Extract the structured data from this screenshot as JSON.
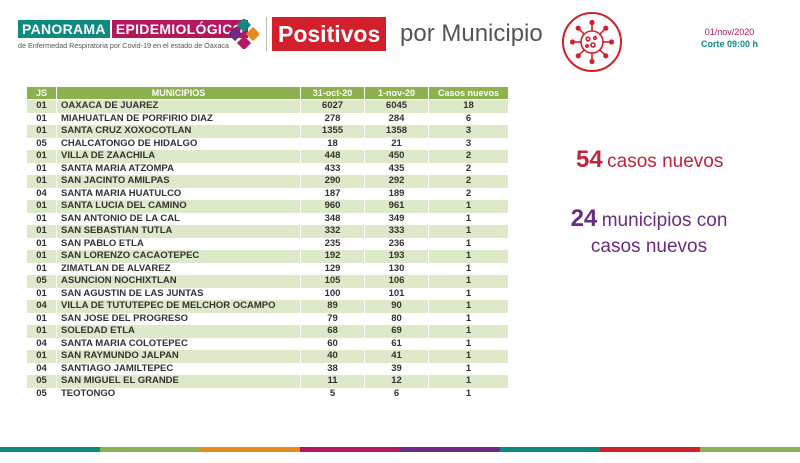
{
  "header": {
    "brand_a": "PANORAMA",
    "brand_b": "EPIDEMIOLÓGICO",
    "brand_sub": "de Enfermedad Respiratoria por Covid-19 en el estado de Oaxaca",
    "title_highlight": "Positivos",
    "title_rest": "por Municipio",
    "date": "01/nov/2020",
    "corte": "Corte 09:00 h"
  },
  "table": {
    "headers": [
      "JS",
      "MUNICIPIOS",
      "31-oct-20",
      "1-nov-20",
      "Casos nuevos"
    ],
    "rows": [
      [
        "01",
        "OAXACA DE JUAREZ",
        "6027",
        "6045",
        "18"
      ],
      [
        "01",
        "MIAHUATLAN DE PORFIRIO DIAZ",
        "278",
        "284",
        "6"
      ],
      [
        "01",
        "SANTA CRUZ XOXOCOTLAN",
        "1355",
        "1358",
        "3"
      ],
      [
        "05",
        "CHALCATONGO DE HIDALGO",
        "18",
        "21",
        "3"
      ],
      [
        "01",
        "VILLA DE ZAACHILA",
        "448",
        "450",
        "2"
      ],
      [
        "01",
        "SANTA MARIA ATZOMPA",
        "433",
        "435",
        "2"
      ],
      [
        "01",
        "SAN JACINTO AMILPAS",
        "290",
        "292",
        "2"
      ],
      [
        "04",
        "SANTA MARIA HUATULCO",
        "187",
        "189",
        "2"
      ],
      [
        "01",
        "SANTA LUCIA DEL CAMINO",
        "960",
        "961",
        "1"
      ],
      [
        "01",
        "SAN ANTONIO DE LA CAL",
        "348",
        "349",
        "1"
      ],
      [
        "01",
        "SAN SEBASTIAN TUTLA",
        "332",
        "333",
        "1"
      ],
      [
        "01",
        "SAN PABLO ETLA",
        "235",
        "236",
        "1"
      ],
      [
        "01",
        "SAN LORENZO CACAOTEPEC",
        "192",
        "193",
        "1"
      ],
      [
        "01",
        "ZIMATLAN DE ALVAREZ",
        "129",
        "130",
        "1"
      ],
      [
        "05",
        "ASUNCION NOCHIXTLAN",
        "105",
        "106",
        "1"
      ],
      [
        "01",
        "SAN AGUSTIN DE LAS JUNTAS",
        "100",
        "101",
        "1"
      ],
      [
        "04",
        "VILLA DE TUTUTEPEC DE MELCHOR OCAMPO",
        "89",
        "90",
        "1"
      ],
      [
        "01",
        "SAN JOSE DEL PROGRESO",
        "79",
        "80",
        "1"
      ],
      [
        "01",
        "SOLEDAD ETLA",
        "68",
        "69",
        "1"
      ],
      [
        "04",
        "SANTA MARIA COLOTEPEC",
        "60",
        "61",
        "1"
      ],
      [
        "01",
        "SAN RAYMUNDO JALPAN",
        "40",
        "41",
        "1"
      ],
      [
        "04",
        "SANTIAGO JAMILTEPEC",
        "38",
        "39",
        "1"
      ],
      [
        "05",
        "SAN MIGUEL EL GRANDE",
        "11",
        "12",
        "1"
      ],
      [
        "05",
        "TEOTONGO",
        "5",
        "6",
        "1"
      ]
    ]
  },
  "summary": {
    "cases_number": "54",
    "cases_text": "casos nuevos",
    "municipios_number": "24",
    "municipios_text_1": "municipios con",
    "municipios_text_2": "casos nuevos"
  },
  "icons": {
    "logo": "four-color-x-logo-icon",
    "virus": "virus-icon"
  },
  "colors": {
    "teal": "#0f8a80",
    "magenta": "#b5175e",
    "red": "#d21f2b",
    "purple": "#6b2b85",
    "table_header": "#8bb24e",
    "table_row_alt": "#dde9c8"
  }
}
